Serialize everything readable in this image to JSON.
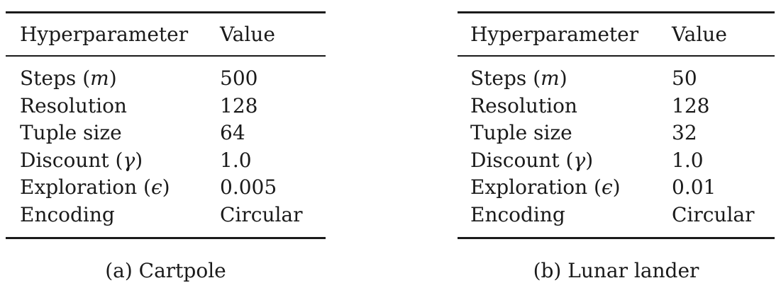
{
  "tables": [
    {
      "header": {
        "param": "Hyperparameter",
        "value": "Value"
      },
      "rows": [
        {
          "label": "Steps (",
          "math": "m",
          "close": ")",
          "value": "500"
        },
        {
          "label": "Resolution",
          "value": "128"
        },
        {
          "label": "Tuple size",
          "value": "64"
        },
        {
          "label": "Discount (",
          "math": "γ",
          "close": ")",
          "value": "1.0"
        },
        {
          "label": "Exploration (",
          "math": "ϵ",
          "close": ")",
          "value": "0.005"
        },
        {
          "label": "Encoding",
          "value": "Circular"
        }
      ],
      "caption": "(a) Cartpole"
    },
    {
      "header": {
        "param": "Hyperparameter",
        "value": "Value"
      },
      "rows": [
        {
          "label": "Steps (",
          "math": "m",
          "close": ")",
          "value": "50"
        },
        {
          "label": "Resolution",
          "value": "128"
        },
        {
          "label": "Tuple size",
          "value": "32"
        },
        {
          "label": "Discount (",
          "math": "γ",
          "close": ")",
          "value": "1.0"
        },
        {
          "label": "Exploration (",
          "math": "ϵ",
          "close": ")",
          "value": "0.01"
        },
        {
          "label": "Encoding",
          "value": "Circular"
        }
      ],
      "caption": "(b) Lunar lander"
    }
  ]
}
